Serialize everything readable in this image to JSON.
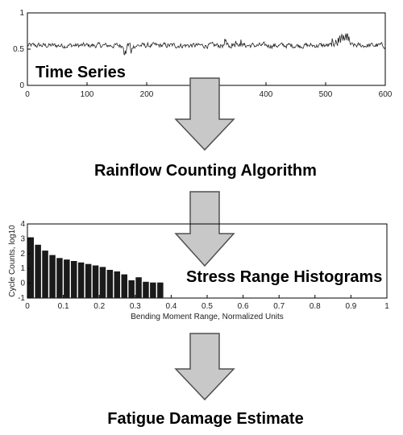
{
  "stage_labels": {
    "time_series": "Time Series",
    "rainflow": "Rainflow Counting Algorithm",
    "histograms": "Stress Range Histograms",
    "fatigue": "Fatigue Damage Estimate"
  },
  "colors": {
    "arrow_fill": "#c8c8c8",
    "arrow_stroke": "#505050",
    "bar_fill": "#1a1a1a",
    "trace": "#222222"
  },
  "chart_data": [
    {
      "type": "line",
      "title": "",
      "xlabel": "",
      "ylabel": "",
      "xlim": [
        0,
        600
      ],
      "ylim": [
        0,
        1
      ],
      "x_ticks": [
        "0",
        "100",
        "200",
        "300",
        "400",
        "500",
        "600"
      ],
      "y_ticks": [
        "0",
        "0.5",
        "1"
      ],
      "series": [
        {
          "mean": 0.55,
          "amplitude": 0.06,
          "points": 600
        }
      ],
      "grid": false
    },
    {
      "type": "bar",
      "title": "",
      "xlabel": "Bending Moment Range, Normalized Units",
      "ylabel": "Cycle Counts, log10",
      "xlim": [
        0,
        1
      ],
      "ylim": [
        -1,
        4
      ],
      "x_ticks": [
        "0",
        "0.1",
        "0.2",
        "0.3",
        "0.4",
        "0.5",
        "0.6",
        "0.7",
        "0.8",
        "0.9",
        "1"
      ],
      "y_ticks": [
        "-1",
        "0",
        "1",
        "2",
        "3",
        "4"
      ],
      "x": [
        0.0,
        0.02,
        0.04,
        0.06,
        0.08,
        0.1,
        0.12,
        0.14,
        0.16,
        0.18,
        0.2,
        0.22,
        0.24,
        0.26,
        0.28,
        0.3,
        0.32,
        0.34,
        0.36
      ],
      "values": [
        3.1,
        2.6,
        2.2,
        1.9,
        1.7,
        1.6,
        1.5,
        1.4,
        1.3,
        1.2,
        1.1,
        0.9,
        0.8,
        0.6,
        0.2,
        0.4,
        0.1,
        0.05,
        0.05
      ],
      "bar_width": 0.018,
      "grid": false
    }
  ]
}
